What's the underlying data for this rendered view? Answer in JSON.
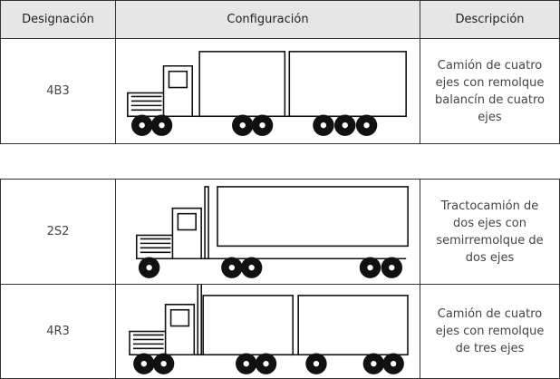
{
  "tables": [
    {
      "header": [
        "Designación",
        "Configuración",
        "Descripción"
      ],
      "rows": [
        [
          "4B3",
          "Camión de cuatro ejes con remolque balancín de cuatro ejes"
        ]
      ]
    },
    {
      "rows": [
        [
          "2S2",
          "Tractocamión de dos ejes con semirremolque de dos ejes"
        ],
        [
          "4R3",
          "Camión de cuatro ejes con remolque de tres ejes"
        ]
      ]
    }
  ]
}
